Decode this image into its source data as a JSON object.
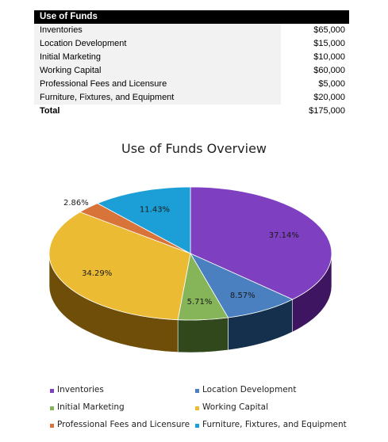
{
  "table": {
    "header": "Use of Funds",
    "rows": [
      {
        "label": "Inventories",
        "amount": "$65,000"
      },
      {
        "label": "Location Development",
        "amount": "$15,000"
      },
      {
        "label": "Initial Marketing",
        "amount": "$10,000"
      },
      {
        "label": "Working Capital",
        "amount": "$60,000"
      },
      {
        "label": "Professional Fees and Licensure",
        "amount": "$5,000"
      },
      {
        "label": "Furniture, Fixtures, and Equipment",
        "amount": "$20,000"
      }
    ],
    "total": {
      "label": "Total",
      "amount": "$175,000"
    }
  },
  "chart_data": {
    "type": "pie",
    "title": "Use of Funds Overview",
    "categories": [
      "Inventories",
      "Location Development",
      "Initial Marketing",
      "Working Capital",
      "Professional Fees and Licensure",
      "Furniture, Fixtures, and Equipment"
    ],
    "values": [
      37.14,
      8.57,
      5.71,
      34.29,
      2.86,
      11.43
    ],
    "data_labels": [
      "37.14%",
      "8.57%",
      "5.71%",
      "34.29%",
      "2.86%",
      "11.43%"
    ],
    "colors": [
      "#7e3fc0",
      "#4a7fc0",
      "#86b458",
      "#ebbb33",
      "#d8733a",
      "#1b9fd6"
    ],
    "side_colors": [
      "#3d1560",
      "#14304c",
      "#30481c",
      "#6e4e08",
      "#6b3010",
      "#0e4766"
    ],
    "legend_position": "bottom",
    "style": "3d"
  }
}
